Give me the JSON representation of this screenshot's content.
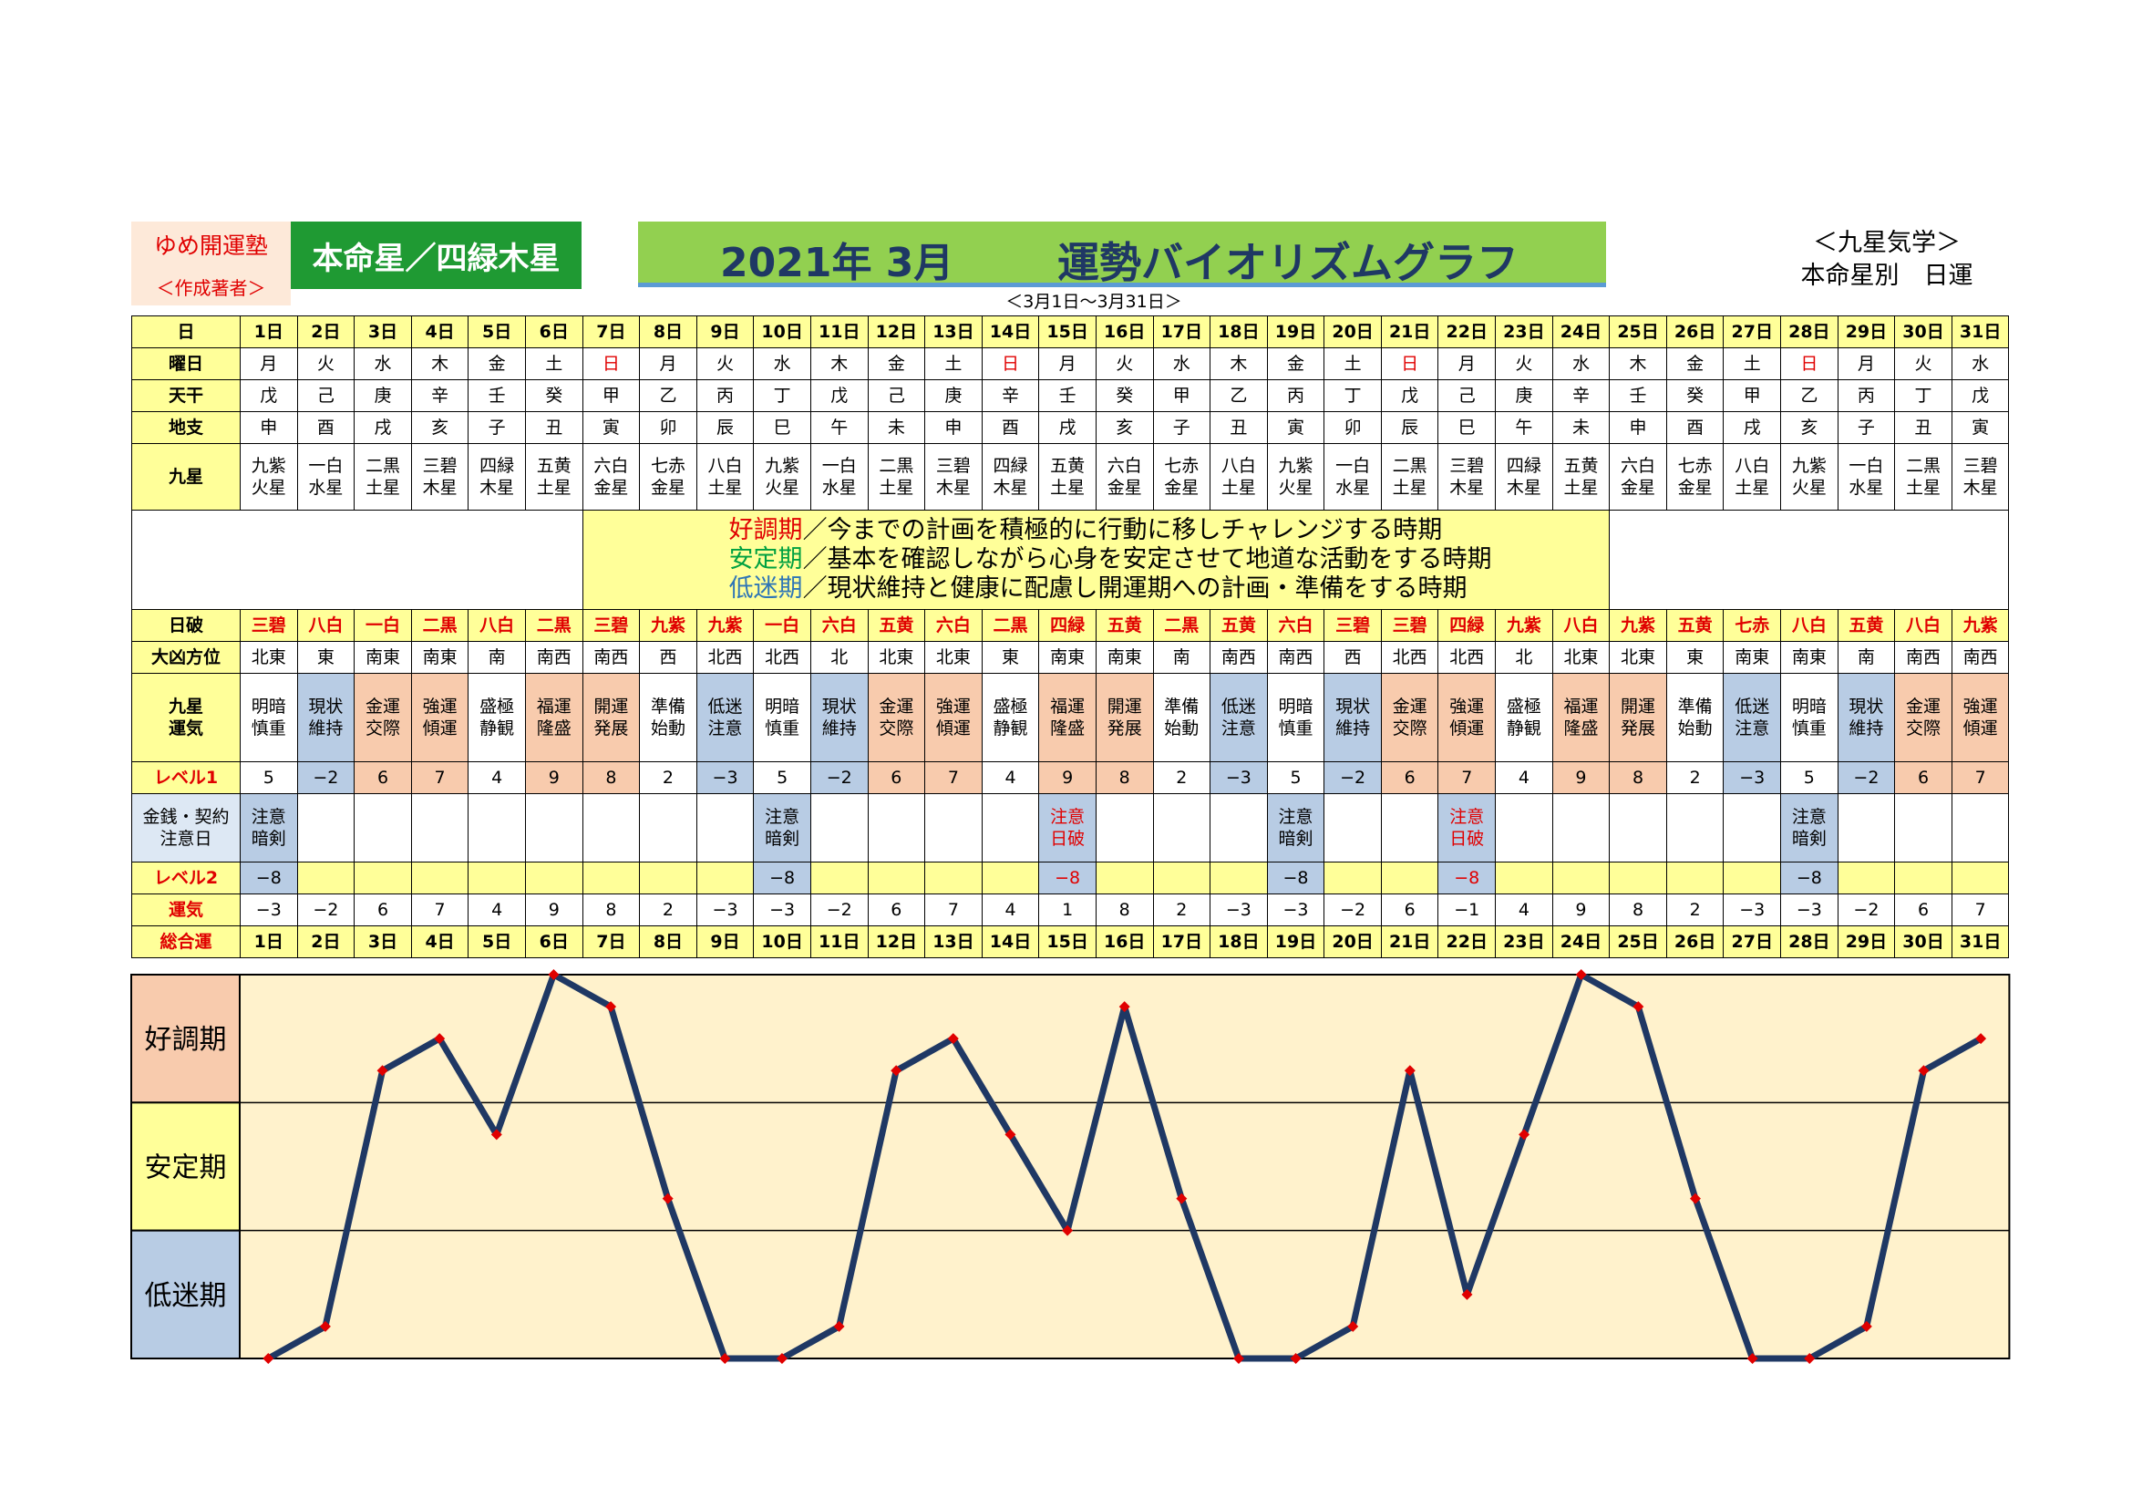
{
  "header": {
    "author_name": "ゆめ開運塾",
    "author_role": "＜作成著者＞",
    "honmei": "本命星／四緑木星",
    "year_month": "2021年 3月",
    "title": "運勢バイオリズムグラフ",
    "date_range": "＜3月1日～3月31日＞",
    "kyusei_label": "＜九星気学＞",
    "kyusei_sub": "本命星別　日運"
  },
  "row_labels": {
    "day": "日",
    "weekday": "曜日",
    "tenkan": "天干",
    "chishi": "地支",
    "kyusei": "九星",
    "nippa": "日破",
    "daikyo": "大凶方位",
    "unki_1": "九星",
    "unki_2": "運気",
    "level1": "レベル1",
    "money_1": "金銭・契約",
    "money_2": "注意日",
    "level2": "レベル2",
    "total_1": "運気",
    "total_2": "総合運"
  },
  "legend": [
    {
      "key": "好調期",
      "text": "／今までの計画を積極的に行動に移しチャレンジする時期",
      "color": "#e00000"
    },
    {
      "key": "安定期",
      "text": "／基本を確認しながら心身を安定させて地道な活動をする時期",
      "color": "#00a040"
    },
    {
      "key": "低迷期",
      "text": "／現状維持と健康に配慮し開運期への計画・準備をする時期",
      "color": "#2e75b6"
    }
  ],
  "days": [
    "1日",
    "2日",
    "3日",
    "4日",
    "5日",
    "6日",
    "7日",
    "8日",
    "9日",
    "10日",
    "11日",
    "12日",
    "13日",
    "14日",
    "15日",
    "16日",
    "17日",
    "18日",
    "19日",
    "20日",
    "21日",
    "22日",
    "23日",
    "24日",
    "25日",
    "26日",
    "27日",
    "28日",
    "29日",
    "30日",
    "31日"
  ],
  "weekdays": [
    "月",
    "火",
    "水",
    "木",
    "金",
    "土",
    "日",
    "月",
    "火",
    "水",
    "木",
    "金",
    "土",
    "日",
    "月",
    "火",
    "水",
    "木",
    "金",
    "土",
    "日",
    "月",
    "火",
    "水",
    "木",
    "金",
    "土",
    "日",
    "月",
    "火",
    "水"
  ],
  "tenkan": [
    "戊",
    "己",
    "庚",
    "辛",
    "壬",
    "癸",
    "甲",
    "乙",
    "丙",
    "丁",
    "戊",
    "己",
    "庚",
    "辛",
    "壬",
    "癸",
    "甲",
    "乙",
    "丙",
    "丁",
    "戊",
    "己",
    "庚",
    "辛",
    "壬",
    "癸",
    "甲",
    "乙",
    "丙",
    "丁",
    "戊"
  ],
  "chishi": [
    "申",
    "酉",
    "戌",
    "亥",
    "子",
    "丑",
    "寅",
    "卯",
    "辰",
    "巳",
    "午",
    "未",
    "申",
    "酉",
    "戌",
    "亥",
    "子",
    "丑",
    "寅",
    "卯",
    "辰",
    "巳",
    "午",
    "未",
    "申",
    "酉",
    "戌",
    "亥",
    "子",
    "丑",
    "寅"
  ],
  "kyusei_top": [
    "九紫",
    "一白",
    "二黒",
    "三碧",
    "四緑",
    "五黄",
    "六白",
    "七赤",
    "八白",
    "九紫",
    "一白",
    "二黒",
    "三碧",
    "四緑",
    "五黄",
    "六白",
    "七赤",
    "八白",
    "九紫",
    "一白",
    "二黒",
    "三碧",
    "四緑",
    "五黄",
    "六白",
    "七赤",
    "八白",
    "九紫",
    "一白",
    "二黒",
    "三碧"
  ],
  "kyusei_bottom": [
    "火星",
    "水星",
    "土星",
    "木星",
    "木星",
    "土星",
    "金星",
    "金星",
    "土星",
    "火星",
    "水星",
    "土星",
    "木星",
    "木星",
    "土星",
    "金星",
    "金星",
    "土星",
    "火星",
    "水星",
    "土星",
    "木星",
    "木星",
    "土星",
    "金星",
    "金星",
    "土星",
    "火星",
    "水星",
    "土星",
    "木星"
  ],
  "nippa": [
    "三碧",
    "八白",
    "一白",
    "二黒",
    "八白",
    "二黒",
    "三碧",
    "九紫",
    "九紫",
    "一白",
    "六白",
    "五黄",
    "六白",
    "二黒",
    "四緑",
    "五黄",
    "二黒",
    "五黄",
    "六白",
    "三碧",
    "三碧",
    "四緑",
    "九紫",
    "八白",
    "九紫",
    "五黄",
    "七赤",
    "八白",
    "五黄",
    "八白",
    "九紫"
  ],
  "daikyo": [
    "北東",
    "東",
    "南東",
    "南東",
    "南",
    "南西",
    "南西",
    "西",
    "北西",
    "北西",
    "北",
    "北東",
    "北東",
    "東",
    "南東",
    "南東",
    "南",
    "南西",
    "南西",
    "西",
    "北西",
    "北西",
    "北",
    "北東",
    "北東",
    "東",
    "南東",
    "南東",
    "南",
    "南西",
    "南西"
  ],
  "unki_top": [
    "明暗",
    "現状",
    "金運",
    "強運",
    "盛極",
    "福運",
    "開運",
    "準備",
    "低迷",
    "明暗",
    "現状",
    "金運",
    "強運",
    "盛極",
    "福運",
    "開運",
    "準備",
    "低迷",
    "明暗",
    "現状",
    "金運",
    "強運",
    "盛極",
    "福運",
    "開運",
    "準備",
    "低迷",
    "明暗",
    "現状",
    "金運",
    "強運"
  ],
  "unki_bottom": [
    "慎重",
    "維持",
    "交際",
    "傾運",
    "静観",
    "隆盛",
    "発展",
    "始動",
    "注意",
    "慎重",
    "維持",
    "交際",
    "傾運",
    "静観",
    "隆盛",
    "発展",
    "始動",
    "注意",
    "慎重",
    "維持",
    "交際",
    "傾運",
    "静観",
    "隆盛",
    "発展",
    "始動",
    "注意",
    "慎重",
    "維持",
    "交際",
    "傾運"
  ],
  "level1": [
    "5",
    "−2",
    "6",
    "7",
    "4",
    "9",
    "8",
    "2",
    "−3",
    "5",
    "−2",
    "6",
    "7",
    "4",
    "9",
    "8",
    "2",
    "−3",
    "5",
    "−2",
    "6",
    "7",
    "4",
    "9",
    "8",
    "2",
    "−3",
    "5",
    "−2",
    "6",
    "7"
  ],
  "money_top": [
    "注意",
    "",
    "",
    "",
    "",
    "",
    "",
    "",
    "",
    "注意",
    "",
    "",
    "",
    "",
    "注意",
    "",
    "",
    "",
    "注意",
    "",
    "",
    "注意",
    "",
    "",
    "",
    "",
    "",
    "注意",
    "",
    "",
    ""
  ],
  "money_bottom": [
    "暗剣",
    "",
    "",
    "",
    "",
    "",
    "",
    "",
    "",
    "暗剣",
    "",
    "",
    "",
    "",
    "日破",
    "",
    "",
    "",
    "暗剣",
    "",
    "",
    "日破",
    "",
    "",
    "",
    "",
    "",
    "暗剣",
    "",
    "",
    ""
  ],
  "level2": [
    "−8",
    "",
    "",
    "",
    "",
    "",
    "",
    "",
    "",
    "−8",
    "",
    "",
    "",
    "",
    "−8",
    "",
    "",
    "",
    "−8",
    "",
    "",
    "−8",
    "",
    "",
    "",
    "",
    "",
    "−8",
    "",
    "",
    ""
  ],
  "total": [
    "−3",
    "−2",
    "6",
    "7",
    "4",
    "9",
    "8",
    "2",
    "−3",
    "−3",
    "−2",
    "6",
    "7",
    "4",
    "1",
    "8",
    "2",
    "−3",
    "−3",
    "−2",
    "6",
    "−1",
    "4",
    "9",
    "8",
    "2",
    "−3",
    "−3",
    "−2",
    "6",
    "7"
  ],
  "chart_labels": {
    "good": "好調期",
    "stable": "安定期",
    "low": "低迷期"
  },
  "chart_data": {
    "type": "line",
    "categories": [
      "1日",
      "2日",
      "3日",
      "4日",
      "5日",
      "6日",
      "7日",
      "8日",
      "9日",
      "10日",
      "11日",
      "12日",
      "13日",
      "14日",
      "15日",
      "16日",
      "17日",
      "18日",
      "19日",
      "20日",
      "21日",
      "22日",
      "23日",
      "24日",
      "25日",
      "26日",
      "27日",
      "28日",
      "29日",
      "30日",
      "31日"
    ],
    "series": [
      {
        "values": [
          -3,
          -2,
          6,
          7,
          4,
          9,
          8,
          2,
          -3,
          -3,
          -2,
          6,
          7,
          4,
          1,
          8,
          2,
          -3,
          -3,
          -2,
          6,
          -1,
          4,
          9,
          8,
          2,
          -3,
          -3,
          -2,
          6,
          7
        ]
      }
    ],
    "ylim": [
      -3,
      9
    ],
    "bands": [
      "好調期",
      "安定期",
      "低迷期"
    ],
    "colors": {
      "line": "#1f3864",
      "marker": "#e00000",
      "band_good": "#f8cbad",
      "band_stable": "#ffff99",
      "band_low": "#b8cce4",
      "plot_bg": "#fff2cc"
    }
  }
}
